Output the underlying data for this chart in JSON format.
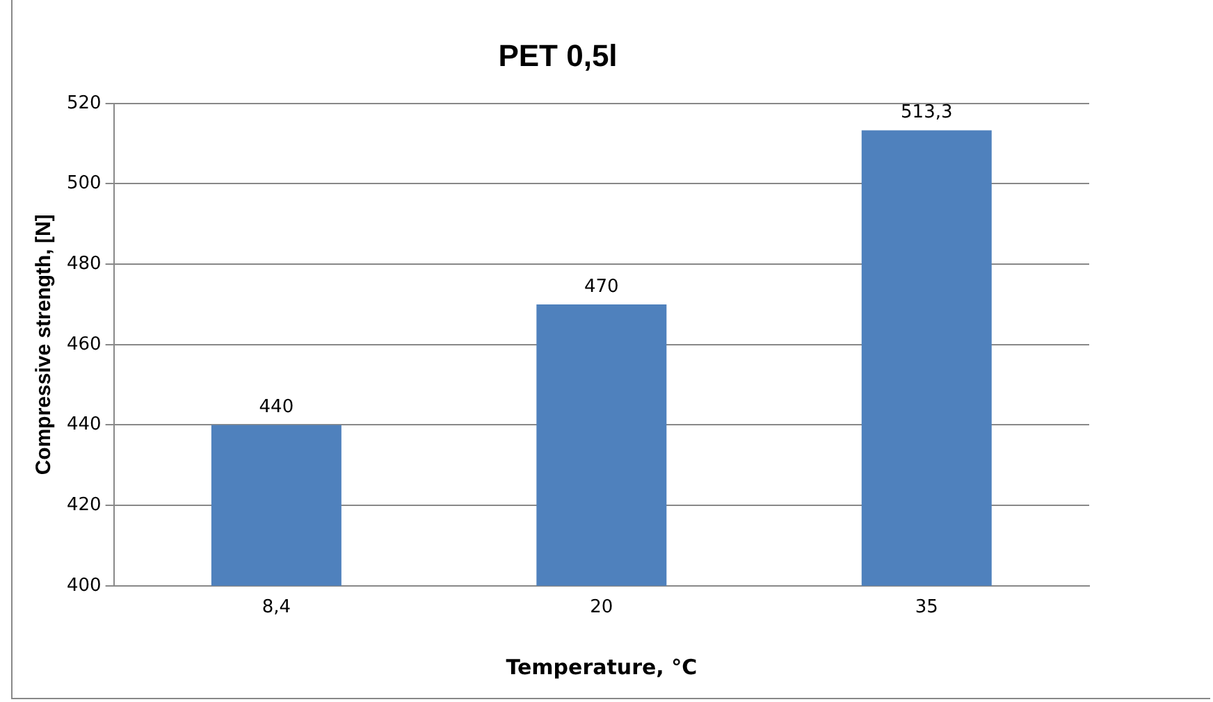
{
  "chart_data": {
    "type": "bar",
    "title": "PET 0,5l",
    "xlabel": "Temperature, °C",
    "ylabel": "Compressive strength, [N]",
    "categories": [
      "8,4",
      "20",
      "35"
    ],
    "values": [
      440,
      470,
      513.3
    ],
    "color": "#4f81bd",
    "value_labels": [
      "440",
      "470",
      "513,3"
    ],
    "ylim": [
      400,
      520
    ],
    "yticks": [
      400,
      420,
      440,
      460,
      480,
      500,
      520
    ],
    "grid": "y"
  }
}
